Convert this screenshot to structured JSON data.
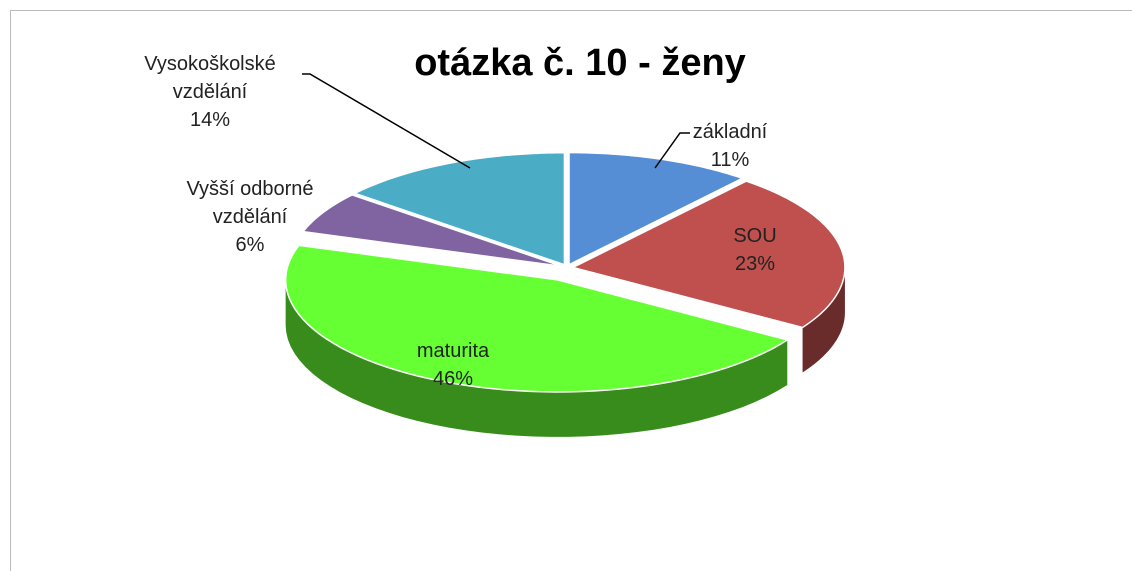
{
  "chart_data": {
    "type": "pie",
    "title": "otázka č. 10 - ženy",
    "categories": [
      "základní",
      "SOU",
      "maturita",
      "Vyšší odborné vzdělání",
      "Vysokoškolské vzdělání"
    ],
    "values": [
      11,
      23,
      46,
      6,
      14
    ],
    "value_labels": [
      "11%",
      "23%",
      "46%",
      "6%",
      "14%"
    ],
    "colors": [
      "#558ed5",
      "#c0504d",
      "#66ff33",
      "#8064a2",
      "#4bacc6"
    ]
  }
}
